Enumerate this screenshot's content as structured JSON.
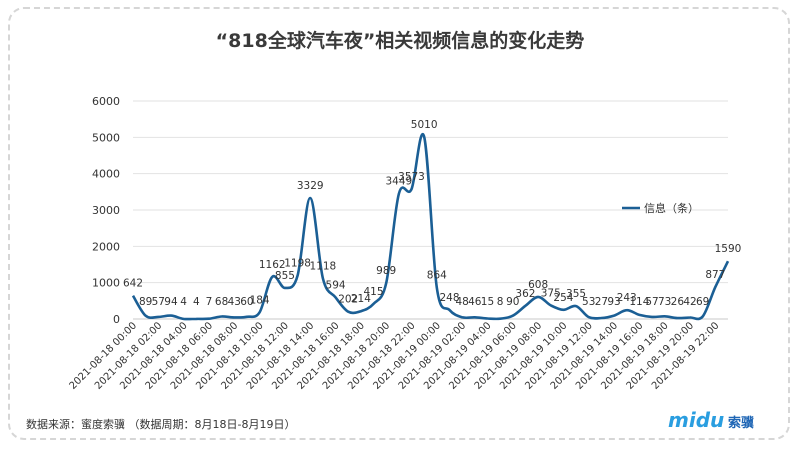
{
  "title": "“818全球汽车夜”相关视频信息的变化走势",
  "source": "数据来源：蜜度索骥 （数据周期：8月18日-8月19日）",
  "brand": "midu",
  "brand_cn": "索骥",
  "colors": {
    "line": "#1b5f95",
    "grid": "#e2e2e2",
    "axis": "#c8c8c8"
  },
  "chart_data": {
    "type": "line",
    "title": "“818全球汽车夜”相关视频信息的变化走势",
    "xlabel": "",
    "ylabel": "",
    "ylim": [
      0,
      6000
    ],
    "yticks": [
      0,
      1000,
      2000,
      3000,
      4000,
      5000,
      6000
    ],
    "grid": true,
    "legend": "right",
    "x": [
      "2021-08-18 00:00",
      "2021-08-18 01:00",
      "2021-08-18 02:00",
      "2021-08-18 03:00",
      "2021-08-18 04:00",
      "2021-08-18 05:00",
      "2021-08-18 06:00",
      "2021-08-18 07:00",
      "2021-08-18 08:00",
      "2021-08-18 09:00",
      "2021-08-18 10:00",
      "2021-08-18 11:00",
      "2021-08-18 12:00",
      "2021-08-18 13:00",
      "2021-08-18 14:00",
      "2021-08-18 15:00",
      "2021-08-18 16:00",
      "2021-08-18 17:00",
      "2021-08-18 18:00",
      "2021-08-18 19:00",
      "2021-08-18 20:00",
      "2021-08-18 21:00",
      "2021-08-18 22:00",
      "2021-08-18 23:00",
      "2021-08-19 00:00",
      "2021-08-19 01:00",
      "2021-08-19 02:00",
      "2021-08-19 03:00",
      "2021-08-19 04:00",
      "2021-08-19 05:00",
      "2021-08-19 06:00",
      "2021-08-19 07:00",
      "2021-08-19 08:00",
      "2021-08-19 09:00",
      "2021-08-19 10:00",
      "2021-08-19 11:00",
      "2021-08-19 12:00",
      "2021-08-19 13:00",
      "2021-08-19 14:00",
      "2021-08-19 15:00",
      "2021-08-19 16:00",
      "2021-08-19 17:00",
      "2021-08-19 18:00",
      "2021-08-19 19:00",
      "2021-08-19 20:00",
      "2021-08-19 21:00",
      "2021-08-19 22:00",
      "2021-08-19 23:00"
    ],
    "tick_labels": [
      "2021-08-18 00:00",
      "2021-08-18 02:00",
      "2021-08-18 04:00",
      "2021-08-18 06:00",
      "2021-08-18 08:00",
      "2021-08-18 10:00",
      "2021-08-18 12:00",
      "2021-08-18 14:00",
      "2021-08-18 16:00",
      "2021-08-18 18:00",
      "2021-08-18 20:00",
      "2021-08-18 22:00",
      "2021-08-19 00:00",
      "2021-08-19 02:00",
      "2021-08-19 04:00",
      "2021-08-19 06:00",
      "2021-08-19 08:00",
      "2021-08-19 10:00",
      "2021-08-19 12:00",
      "2021-08-19 14:00",
      "2021-08-19 16:00",
      "2021-08-19 18:00",
      "2021-08-19 20:00",
      "2021-08-19 22:00"
    ],
    "series": [
      {
        "name": "信息（条）",
        "values": [
          642,
          89,
          57,
          94,
          4,
          4,
          7,
          68,
          43,
          60,
          184,
          1162,
          855,
          1198,
          3329,
          1118,
          594,
          202,
          214,
          415,
          989,
          3449,
          3573,
          5010,
          864,
          248,
          48,
          46,
          15,
          8,
          90,
          362,
          608,
          375,
          254,
          355,
          53,
          27,
          93,
          243,
          114,
          57,
          73,
          26,
          42,
          69,
          877,
          1590
        ]
      }
    ]
  }
}
